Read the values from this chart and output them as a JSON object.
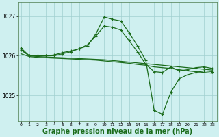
{
  "bg_color": "#cff0f0",
  "grid_color": "#a0d0d0",
  "line_color": "#1a6b1a",
  "xlabel": "Graphe pression niveau de la mer (hPa)",
  "xlabel_fontsize": 7,
  "yticks": [
    1025,
    1026,
    1027
  ],
  "xticks": [
    0,
    1,
    2,
    3,
    4,
    5,
    6,
    7,
    8,
    9,
    10,
    11,
    12,
    13,
    14,
    15,
    16,
    17,
    18,
    19,
    20,
    21,
    22,
    23
  ],
  "ylim": [
    1024.35,
    1027.35
  ],
  "xlim": [
    -0.3,
    23.5
  ],
  "series": [
    {
      "y": [
        1026.15,
        1026.0,
        1025.98,
        1025.97,
        1025.96,
        1025.95,
        1025.94,
        1025.93,
        1025.92,
        1025.91,
        1025.9,
        1025.88,
        1025.86,
        1025.84,
        1025.82,
        1025.8,
        1025.78,
        1025.76,
        1025.74,
        1025.72,
        1025.7,
        1025.68,
        1025.66,
        1025.64
      ],
      "marker": false,
      "lw": 0.9
    },
    {
      "y": [
        1026.05,
        1025.98,
        1025.96,
        1025.95,
        1025.94,
        1025.93,
        1025.92,
        1025.91,
        1025.9,
        1025.89,
        1025.87,
        1025.85,
        1025.83,
        1025.81,
        1025.78,
        1025.76,
        1025.72,
        1025.7,
        1025.68,
        1025.65,
        1025.62,
        1025.6,
        1025.58,
        1025.56
      ],
      "marker": false,
      "lw": 0.9
    },
    {
      "y": [
        1026.2,
        1026.0,
        1026.0,
        1026.0,
        1026.0,
        1026.05,
        1026.1,
        1026.18,
        1026.28,
        1026.5,
        1026.75,
        1026.72,
        1026.65,
        1026.38,
        1026.1,
        1025.78,
        1025.6,
        1025.58,
        1025.72,
        1025.62,
        1025.65,
        1025.7,
        1025.72,
        1025.68
      ],
      "marker": true,
      "lw": 0.9
    },
    {
      "y": [
        1026.15,
        1026.0,
        1026.0,
        1026.0,
        1026.02,
        1026.08,
        1026.12,
        1026.18,
        1026.25,
        1026.55,
        1026.98,
        1026.92,
        1026.88,
        1026.58,
        1026.25,
        1025.88,
        1024.62,
        1024.52,
        1025.08,
        1025.42,
        1025.52,
        1025.58,
        1025.62,
        1025.6
      ],
      "marker": true,
      "lw": 0.9
    }
  ]
}
